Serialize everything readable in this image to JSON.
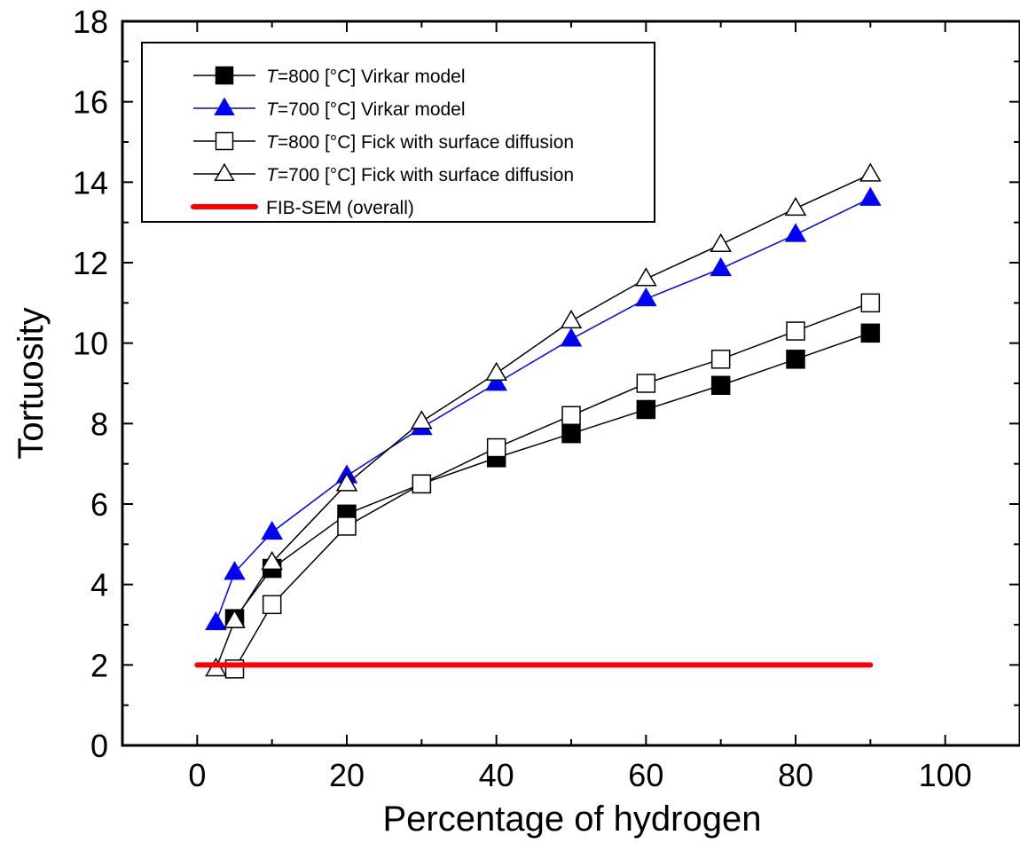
{
  "chart_data": {
    "type": "line",
    "xlabel": "Percentage of hydrogen",
    "ylabel": "Tortuosity",
    "xlim": [
      -10,
      110
    ],
    "ylim": [
      0,
      18
    ],
    "xticks": [
      0,
      20,
      40,
      60,
      80,
      100
    ],
    "yticks": [
      0,
      2,
      4,
      6,
      8,
      10,
      12,
      14,
      16,
      18
    ],
    "xtick_labels": [
      "0",
      "20",
      "40",
      "60",
      "80",
      "100"
    ],
    "ytick_labels": [
      "0",
      "2",
      "4",
      "6",
      "8",
      "10",
      "12",
      "14",
      "16",
      "18"
    ],
    "grid": false,
    "legend_position": "top-left",
    "series": [
      {
        "label_prefix": "T",
        "label_suffix": "=800 [°C] Virkar model",
        "marker": "square",
        "filled": true,
        "marker_color": "#000000",
        "line_color": "#000000",
        "x": [
          5,
          10,
          20,
          30,
          40,
          50,
          60,
          70,
          80,
          90
        ],
        "y": [
          3.15,
          4.4,
          5.75,
          6.5,
          7.15,
          7.75,
          8.35,
          8.95,
          9.6,
          10.25
        ]
      },
      {
        "label_prefix": "T",
        "label_suffix": "=700 [°C] Virkar model",
        "marker": "triangle",
        "filled": true,
        "marker_color": "#0000ff",
        "line_color": "#0000ff",
        "x": [
          2.5,
          5,
          10,
          20,
          30,
          40,
          50,
          60,
          70,
          80,
          90
        ],
        "y": [
          3.05,
          4.3,
          5.3,
          6.7,
          7.9,
          9.0,
          10.1,
          11.1,
          11.85,
          12.7,
          13.6
        ]
      },
      {
        "label_prefix": "T",
        "label_suffix": "=800 [°C] Fick with surface diffusion",
        "marker": "square",
        "filled": false,
        "marker_color": "#000000",
        "line_color": "#000000",
        "x": [
          5,
          10,
          20,
          30,
          40,
          50,
          60,
          70,
          80,
          90
        ],
        "y": [
          1.9,
          3.5,
          5.45,
          6.5,
          7.4,
          8.2,
          9.0,
          9.6,
          10.3,
          11.0
        ]
      },
      {
        "label_prefix": "T",
        "label_suffix": "=700 [°C] Fick with surface diffusion",
        "marker": "triangle",
        "filled": false,
        "marker_color": "#000000",
        "line_color": "#000000",
        "x": [
          2.5,
          5,
          10,
          20,
          30,
          40,
          50,
          60,
          70,
          80,
          90
        ],
        "y": [
          1.9,
          3.1,
          4.55,
          6.5,
          8.05,
          9.25,
          10.55,
          11.6,
          12.45,
          13.35,
          14.2
        ]
      },
      {
        "label_prefix": "",
        "label_suffix": "FIB-SEM (overall)",
        "marker": "none",
        "filled": false,
        "marker_color": "#ff0000",
        "line_color": "#ff0000",
        "x": [
          0,
          90
        ],
        "y": [
          2.0,
          2.0
        ]
      }
    ]
  }
}
